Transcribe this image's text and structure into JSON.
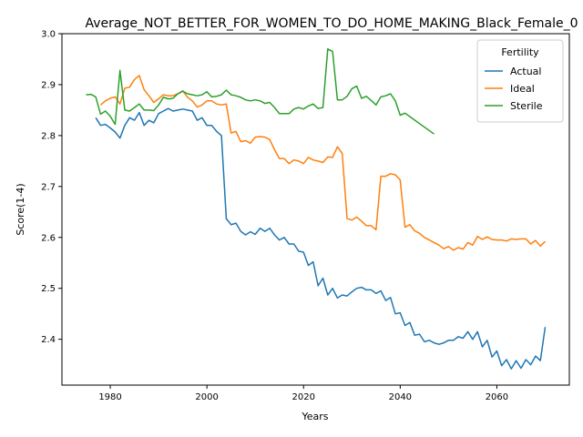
{
  "chart_data": {
    "type": "line",
    "title": "Average_NOT_BETTER_FOR_WOMEN_TO_DO_HOME_MAKING_Black_Female_0",
    "xlabel": "Years",
    "ylabel": "Score(1-4)",
    "xlim": [
      1970,
      2075
    ],
    "ylim": [
      2.31,
      3.0
    ],
    "xticks": [
      1980,
      2000,
      2020,
      2040,
      2060
    ],
    "yticks": [
      2.4,
      2.5,
      2.6,
      2.7,
      2.8,
      2.9,
      3.0
    ],
    "xtick_labels": [
      "1980",
      "2000",
      "2020",
      "2040",
      "2060"
    ],
    "ytick_labels": [
      "2.4",
      "2.5",
      "2.6",
      "2.7",
      "2.8",
      "2.9",
      "3.0"
    ],
    "grid": false,
    "legend": {
      "title": "Fertility",
      "placement": "top-right"
    },
    "series": [
      {
        "name": "Actual",
        "color": "#1f77b4",
        "x": [
          1977,
          1978,
          1979,
          1980,
          1981,
          1982,
          1983,
          1984,
          1985,
          1986,
          1987,
          1988,
          1989,
          1990,
          1991,
          1992,
          1993,
          1994,
          1995,
          1996,
          1997,
          1998,
          1999,
          2000,
          2001,
          2002,
          2003,
          2004,
          2005,
          2006,
          2007,
          2008,
          2009,
          2010,
          2011,
          2012,
          2013,
          2014,
          2015,
          2016,
          2017,
          2018,
          2019,
          2020,
          2021,
          2022,
          2023,
          2024,
          2025,
          2026,
          2027,
          2028,
          2029,
          2030,
          2031,
          2032,
          2033,
          2034,
          2035,
          2036,
          2037,
          2038,
          2039,
          2040,
          2041,
          2042,
          2043,
          2044,
          2045,
          2046,
          2047,
          2048,
          2049,
          2050,
          2051,
          2052,
          2053,
          2054,
          2055,
          2056,
          2057,
          2058,
          2059,
          2060,
          2061,
          2062,
          2063,
          2064,
          2065,
          2066,
          2067,
          2068,
          2069,
          2070
        ],
        "values": [
          2.835,
          2.82,
          2.822,
          2.815,
          2.807,
          2.795,
          2.82,
          2.835,
          2.83,
          2.845,
          2.82,
          2.83,
          2.825,
          2.843,
          2.848,
          2.853,
          2.848,
          2.85,
          2.852,
          2.85,
          2.848,
          2.83,
          2.835,
          2.82,
          2.82,
          2.808,
          2.8,
          2.637,
          2.625,
          2.628,
          2.612,
          2.605,
          2.611,
          2.606,
          2.618,
          2.612,
          2.618,
          2.605,
          2.595,
          2.6,
          2.587,
          2.587,
          2.573,
          2.571,
          2.545,
          2.552,
          2.505,
          2.52,
          2.487,
          2.5,
          2.481,
          2.487,
          2.485,
          2.493,
          2.5,
          2.502,
          2.497,
          2.497,
          2.49,
          2.495,
          2.476,
          2.482,
          2.45,
          2.452,
          2.427,
          2.433,
          2.408,
          2.41,
          2.395,
          2.398,
          2.393,
          2.39,
          2.393,
          2.398,
          2.398,
          2.405,
          2.402,
          2.415,
          2.4,
          2.415,
          2.385,
          2.398,
          2.365,
          2.377,
          2.348,
          2.36,
          2.342,
          2.358,
          2.343,
          2.36,
          2.35,
          2.367,
          2.358,
          2.424
        ]
      },
      {
        "name": "Ideal",
        "color": "#ff7f0e",
        "x": [
          1978,
          1979,
          1980,
          1981,
          1982,
          1983,
          1984,
          1985,
          1986,
          1987,
          1988,
          1989,
          1990,
          1991,
          1992,
          1993,
          1994,
          1995,
          1996,
          1997,
          1998,
          1999,
          2000,
          2001,
          2002,
          2003,
          2004,
          2005,
          2006,
          2007,
          2008,
          2009,
          2010,
          2011,
          2012,
          2013,
          2014,
          2015,
          2016,
          2017,
          2018,
          2019,
          2020,
          2021,
          2022,
          2023,
          2024,
          2025,
          2026,
          2027,
          2028,
          2029,
          2030,
          2031,
          2032,
          2033,
          2034,
          2035,
          2036,
          2037,
          2038,
          2039,
          2040,
          2041,
          2042,
          2043,
          2044,
          2045,
          2046,
          2047,
          2048,
          2049,
          2050,
          2051,
          2052,
          2053,
          2054,
          2055,
          2056,
          2057,
          2058,
          2059,
          2060,
          2061,
          2062,
          2063,
          2064,
          2065,
          2066,
          2067,
          2068,
          2069,
          2070
        ],
        "values": [
          2.86,
          2.868,
          2.873,
          2.876,
          2.862,
          2.893,
          2.895,
          2.91,
          2.918,
          2.89,
          2.878,
          2.865,
          2.872,
          2.88,
          2.878,
          2.878,
          2.882,
          2.888,
          2.875,
          2.868,
          2.856,
          2.86,
          2.868,
          2.868,
          2.862,
          2.86,
          2.862,
          2.805,
          2.808,
          2.788,
          2.79,
          2.785,
          2.797,
          2.798,
          2.797,
          2.792,
          2.772,
          2.755,
          2.755,
          2.745,
          2.752,
          2.75,
          2.745,
          2.757,
          2.752,
          2.75,
          2.747,
          2.758,
          2.757,
          2.778,
          2.765,
          2.637,
          2.634,
          2.64,
          2.632,
          2.623,
          2.623,
          2.615,
          2.72,
          2.72,
          2.725,
          2.723,
          2.713,
          2.62,
          2.625,
          2.613,
          2.608,
          2.6,
          2.595,
          2.59,
          2.585,
          2.578,
          2.582,
          2.575,
          2.58,
          2.577,
          2.59,
          2.585,
          2.602,
          2.596,
          2.601,
          2.596,
          2.595,
          2.595,
          2.593,
          2.597,
          2.596,
          2.597,
          2.597,
          2.587,
          2.594,
          2.583,
          2.592
        ]
      },
      {
        "name": "Sterile",
        "color": "#2ca02c",
        "x": [
          1975,
          1976,
          1977,
          1978,
          1979,
          1980,
          1981,
          1982,
          1983,
          1984,
          1985,
          1986,
          1987,
          1988,
          1989,
          1990,
          1991,
          1992,
          1993,
          1994,
          1995,
          1996,
          1997,
          1998,
          1999,
          2000,
          2001,
          2002,
          2003,
          2004,
          2005,
          2006,
          2007,
          2008,
          2009,
          2010,
          2011,
          2012,
          2013,
          2014,
          2015,
          2016,
          2017,
          2018,
          2019,
          2020,
          2021,
          2022,
          2023,
          2024,
          2025,
          2026,
          2027,
          2028,
          2029,
          2030,
          2031,
          2032,
          2033,
          2034,
          2035,
          2036,
          2037,
          2038,
          2039,
          2040,
          2041,
          2047
        ],
        "values": [
          2.88,
          2.881,
          2.876,
          2.842,
          2.848,
          2.838,
          2.822,
          2.928,
          2.85,
          2.848,
          2.855,
          2.862,
          2.85,
          2.85,
          2.849,
          2.86,
          2.875,
          2.872,
          2.873,
          2.882,
          2.887,
          2.882,
          2.88,
          2.878,
          2.88,
          2.886,
          2.876,
          2.877,
          2.88,
          2.889,
          2.88,
          2.878,
          2.875,
          2.87,
          2.868,
          2.87,
          2.868,
          2.863,
          2.865,
          2.855,
          2.843,
          2.843,
          2.843,
          2.852,
          2.855,
          2.852,
          2.858,
          2.862,
          2.853,
          2.855,
          2.97,
          2.965,
          2.87,
          2.87,
          2.877,
          2.892,
          2.897,
          2.873,
          2.877,
          2.869,
          2.86,
          2.876,
          2.878,
          2.882,
          2.868,
          2.84,
          2.844,
          2.803
        ]
      }
    ]
  }
}
